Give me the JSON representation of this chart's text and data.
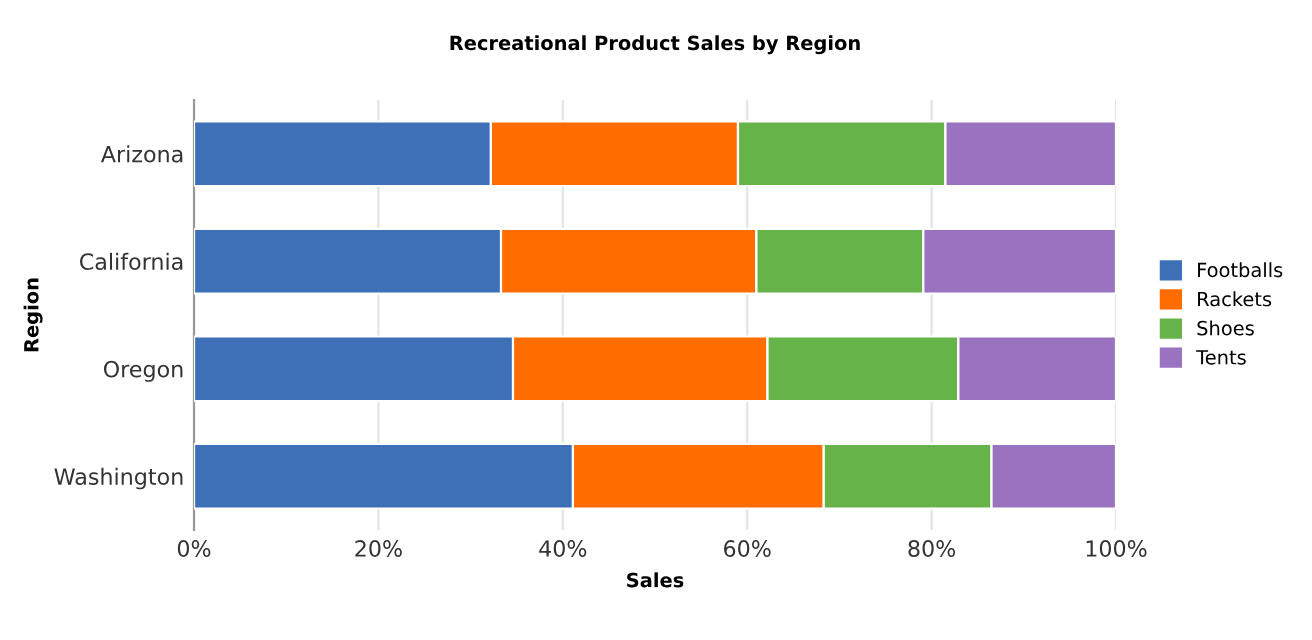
{
  "chart_data": {
    "type": "bar",
    "orientation": "horizontal",
    "stacked": true,
    "title": "Recreational Product Sales by Region",
    "xlabel": "Sales",
    "ylabel": "Region",
    "categories": [
      "Arizona",
      "California",
      "Oregon",
      "Washington"
    ],
    "series": [
      {
        "name": "Footballs",
        "color": "#3d70b6",
        "values": [
          32.2,
          33.3,
          34.6,
          41.1
        ]
      },
      {
        "name": "Rackets",
        "color": "#ff6d00",
        "values": [
          26.8,
          27.7,
          27.6,
          27.2
        ]
      },
      {
        "name": "Shoes",
        "color": "#66b34a",
        "values": [
          22.5,
          18.1,
          20.7,
          18.2
        ]
      },
      {
        "name": "Tents",
        "color": "#9a73c0",
        "values": [
          18.5,
          20.9,
          17.1,
          13.5
        ]
      }
    ],
    "xlim": [
      0,
      100
    ],
    "xticks": [
      {
        "value": 0,
        "label": "0%"
      },
      {
        "value": 20,
        "label": "20%"
      },
      {
        "value": 40,
        "label": "40%"
      },
      {
        "value": 60,
        "label": "60%"
      },
      {
        "value": 80,
        "label": "80%"
      },
      {
        "value": 100,
        "label": "100%"
      }
    ],
    "grid": "x",
    "legend": "right"
  }
}
